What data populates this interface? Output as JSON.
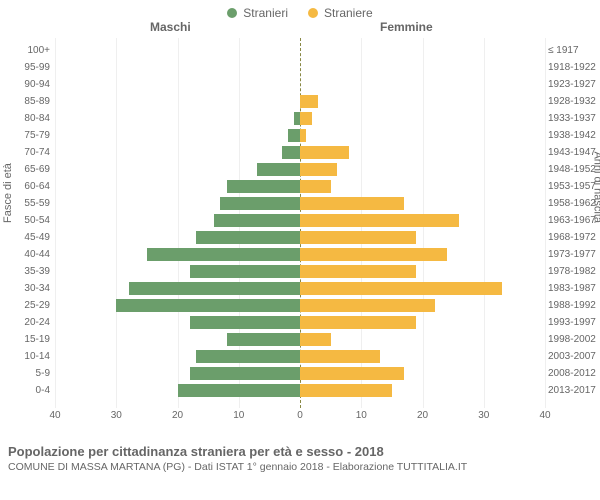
{
  "legend": {
    "male_label": "Stranieri",
    "female_label": "Straniere",
    "male_color": "#6b9e6b",
    "female_color": "#f5b942"
  },
  "headers": {
    "male": "Maschi",
    "female": "Femmine"
  },
  "yaxis_left_title": "Fasce di età",
  "yaxis_right_title": "Anni di nascita",
  "chart": {
    "type": "population-pyramid",
    "xlim": 40,
    "xtick_step": 10,
    "xticks_left": [
      "40",
      "30",
      "20",
      "10",
      "0"
    ],
    "xticks_right": [
      "0",
      "10",
      "20",
      "30",
      "40"
    ],
    "male_color": "#6b9e6b",
    "female_color": "#f5b942",
    "grid_color": "#efefef",
    "center_line_color": "#888844",
    "rows": [
      {
        "age": "100+",
        "birth": "≤ 1917",
        "m": 0,
        "f": 0
      },
      {
        "age": "95-99",
        "birth": "1918-1922",
        "m": 0,
        "f": 0
      },
      {
        "age": "90-94",
        "birth": "1923-1927",
        "m": 0,
        "f": 0
      },
      {
        "age": "85-89",
        "birth": "1928-1932",
        "m": 0,
        "f": 3
      },
      {
        "age": "80-84",
        "birth": "1933-1937",
        "m": 1,
        "f": 2
      },
      {
        "age": "75-79",
        "birth": "1938-1942",
        "m": 2,
        "f": 1
      },
      {
        "age": "70-74",
        "birth": "1943-1947",
        "m": 3,
        "f": 8
      },
      {
        "age": "65-69",
        "birth": "1948-1952",
        "m": 7,
        "f": 6
      },
      {
        "age": "60-64",
        "birth": "1953-1957",
        "m": 12,
        "f": 5
      },
      {
        "age": "55-59",
        "birth": "1958-1962",
        "m": 13,
        "f": 17
      },
      {
        "age": "50-54",
        "birth": "1963-1967",
        "m": 14,
        "f": 26
      },
      {
        "age": "45-49",
        "birth": "1968-1972",
        "m": 17,
        "f": 19
      },
      {
        "age": "40-44",
        "birth": "1973-1977",
        "m": 25,
        "f": 24
      },
      {
        "age": "35-39",
        "birth": "1978-1982",
        "m": 18,
        "f": 19
      },
      {
        "age": "30-34",
        "birth": "1983-1987",
        "m": 28,
        "f": 33
      },
      {
        "age": "25-29",
        "birth": "1988-1992",
        "m": 30,
        "f": 22
      },
      {
        "age": "20-24",
        "birth": "1993-1997",
        "m": 18,
        "f": 19
      },
      {
        "age": "15-19",
        "birth": "1998-2002",
        "m": 12,
        "f": 5
      },
      {
        "age": "10-14",
        "birth": "2003-2007",
        "m": 17,
        "f": 13
      },
      {
        "age": "5-9",
        "birth": "2008-2012",
        "m": 18,
        "f": 17
      },
      {
        "age": "0-4",
        "birth": "2013-2017",
        "m": 20,
        "f": 15
      }
    ]
  },
  "footer": {
    "title": "Popolazione per cittadinanza straniera per età e sesso - 2018",
    "subtitle": "COMUNE DI MASSA MARTANA (PG) - Dati ISTAT 1° gennaio 2018 - Elaborazione TUTTITALIA.IT"
  }
}
